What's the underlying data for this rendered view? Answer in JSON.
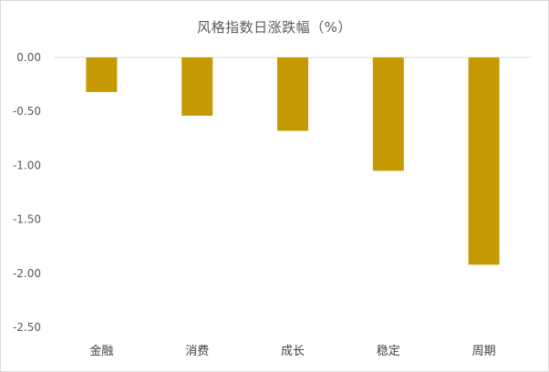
{
  "chart_data": {
    "type": "bar",
    "title": "风格指数日涨跌幅（%）",
    "categories": [
      "金融",
      "消费",
      "成长",
      "稳定",
      "周期"
    ],
    "values": [
      -0.32,
      -0.54,
      -0.68,
      -1.05,
      -1.92
    ],
    "ylim": [
      -2.5,
      0
    ],
    "yticks": [
      "0.00",
      "-0.50",
      "-1.00",
      "-1.50",
      "-2.00",
      "-2.50"
    ],
    "ytick_values": [
      0,
      -0.5,
      -1.0,
      -1.5,
      -2.0,
      -2.5
    ],
    "xlabel": "",
    "ylabel": "",
    "grid": false,
    "legend": "none",
    "colors": {
      "bar": "#c49a00",
      "axis": "#d9d9d9",
      "text": "#595959"
    }
  }
}
